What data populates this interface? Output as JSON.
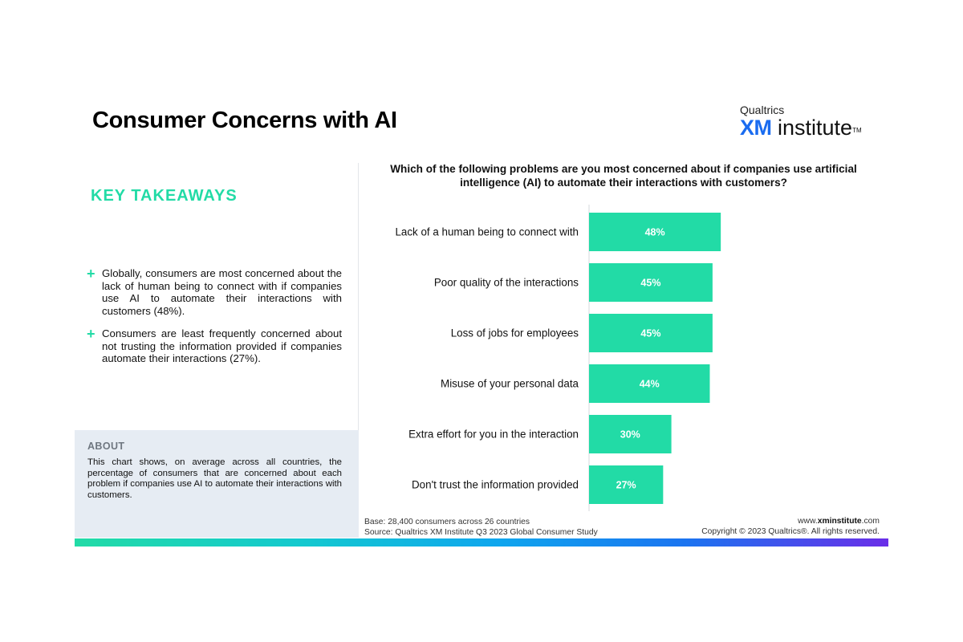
{
  "header": {
    "title": "Consumer Concerns with AI",
    "logo_top": "Qualtrics",
    "logo_xm": "XM",
    "logo_rest": "institute",
    "logo_tm": "TM"
  },
  "takeaways": {
    "heading": "KEY TAKEAWAYS",
    "items": [
      "Globally, consumers are most concerned about the lack of human being to connect with if companies use AI to automate their interactions with customers (48%).",
      "Consumers are least frequently concerned about not trusting the information provided if companies automate their interactions (27%)."
    ]
  },
  "about": {
    "heading": "ABOUT",
    "text": "This chart shows, on average across all countries, the percentage of consumers that are concerned about each problem if companies use AI to automate their interactions with customers."
  },
  "footer": {
    "base": "Base: 28,400 consumers across 26 countries",
    "source": "Source: Qualtrics XM Institute Q3 2023 Global Consumer Study",
    "url_prefix": "www.",
    "url_bold": "xminstitute",
    "url_suffix": ".com",
    "copyright": "Copyright © 2023 Qualtrics®. All rights reserved."
  },
  "colors": {
    "accent": "#22dba6",
    "xm_blue": "#1a6cf0",
    "about_bg": "#e6ecf3"
  },
  "chart_data": {
    "type": "bar",
    "orientation": "horizontal",
    "title": "Which of the following problems are you most concerned about if companies use artificial intelligence (AI) to automate their interactions with customers?",
    "categories": [
      "Lack of a human being to connect with",
      "Poor quality of the interactions",
      "Loss of jobs for employees",
      "Misuse of your personal data",
      "Extra effort for you in the interaction",
      "Don't trust the information provided"
    ],
    "values": [
      48,
      45,
      45,
      44,
      30,
      27
    ],
    "value_labels": [
      "48%",
      "45%",
      "45%",
      "44%",
      "30%",
      "27%"
    ],
    "bar_color": "#22dba6",
    "grid": false
  }
}
